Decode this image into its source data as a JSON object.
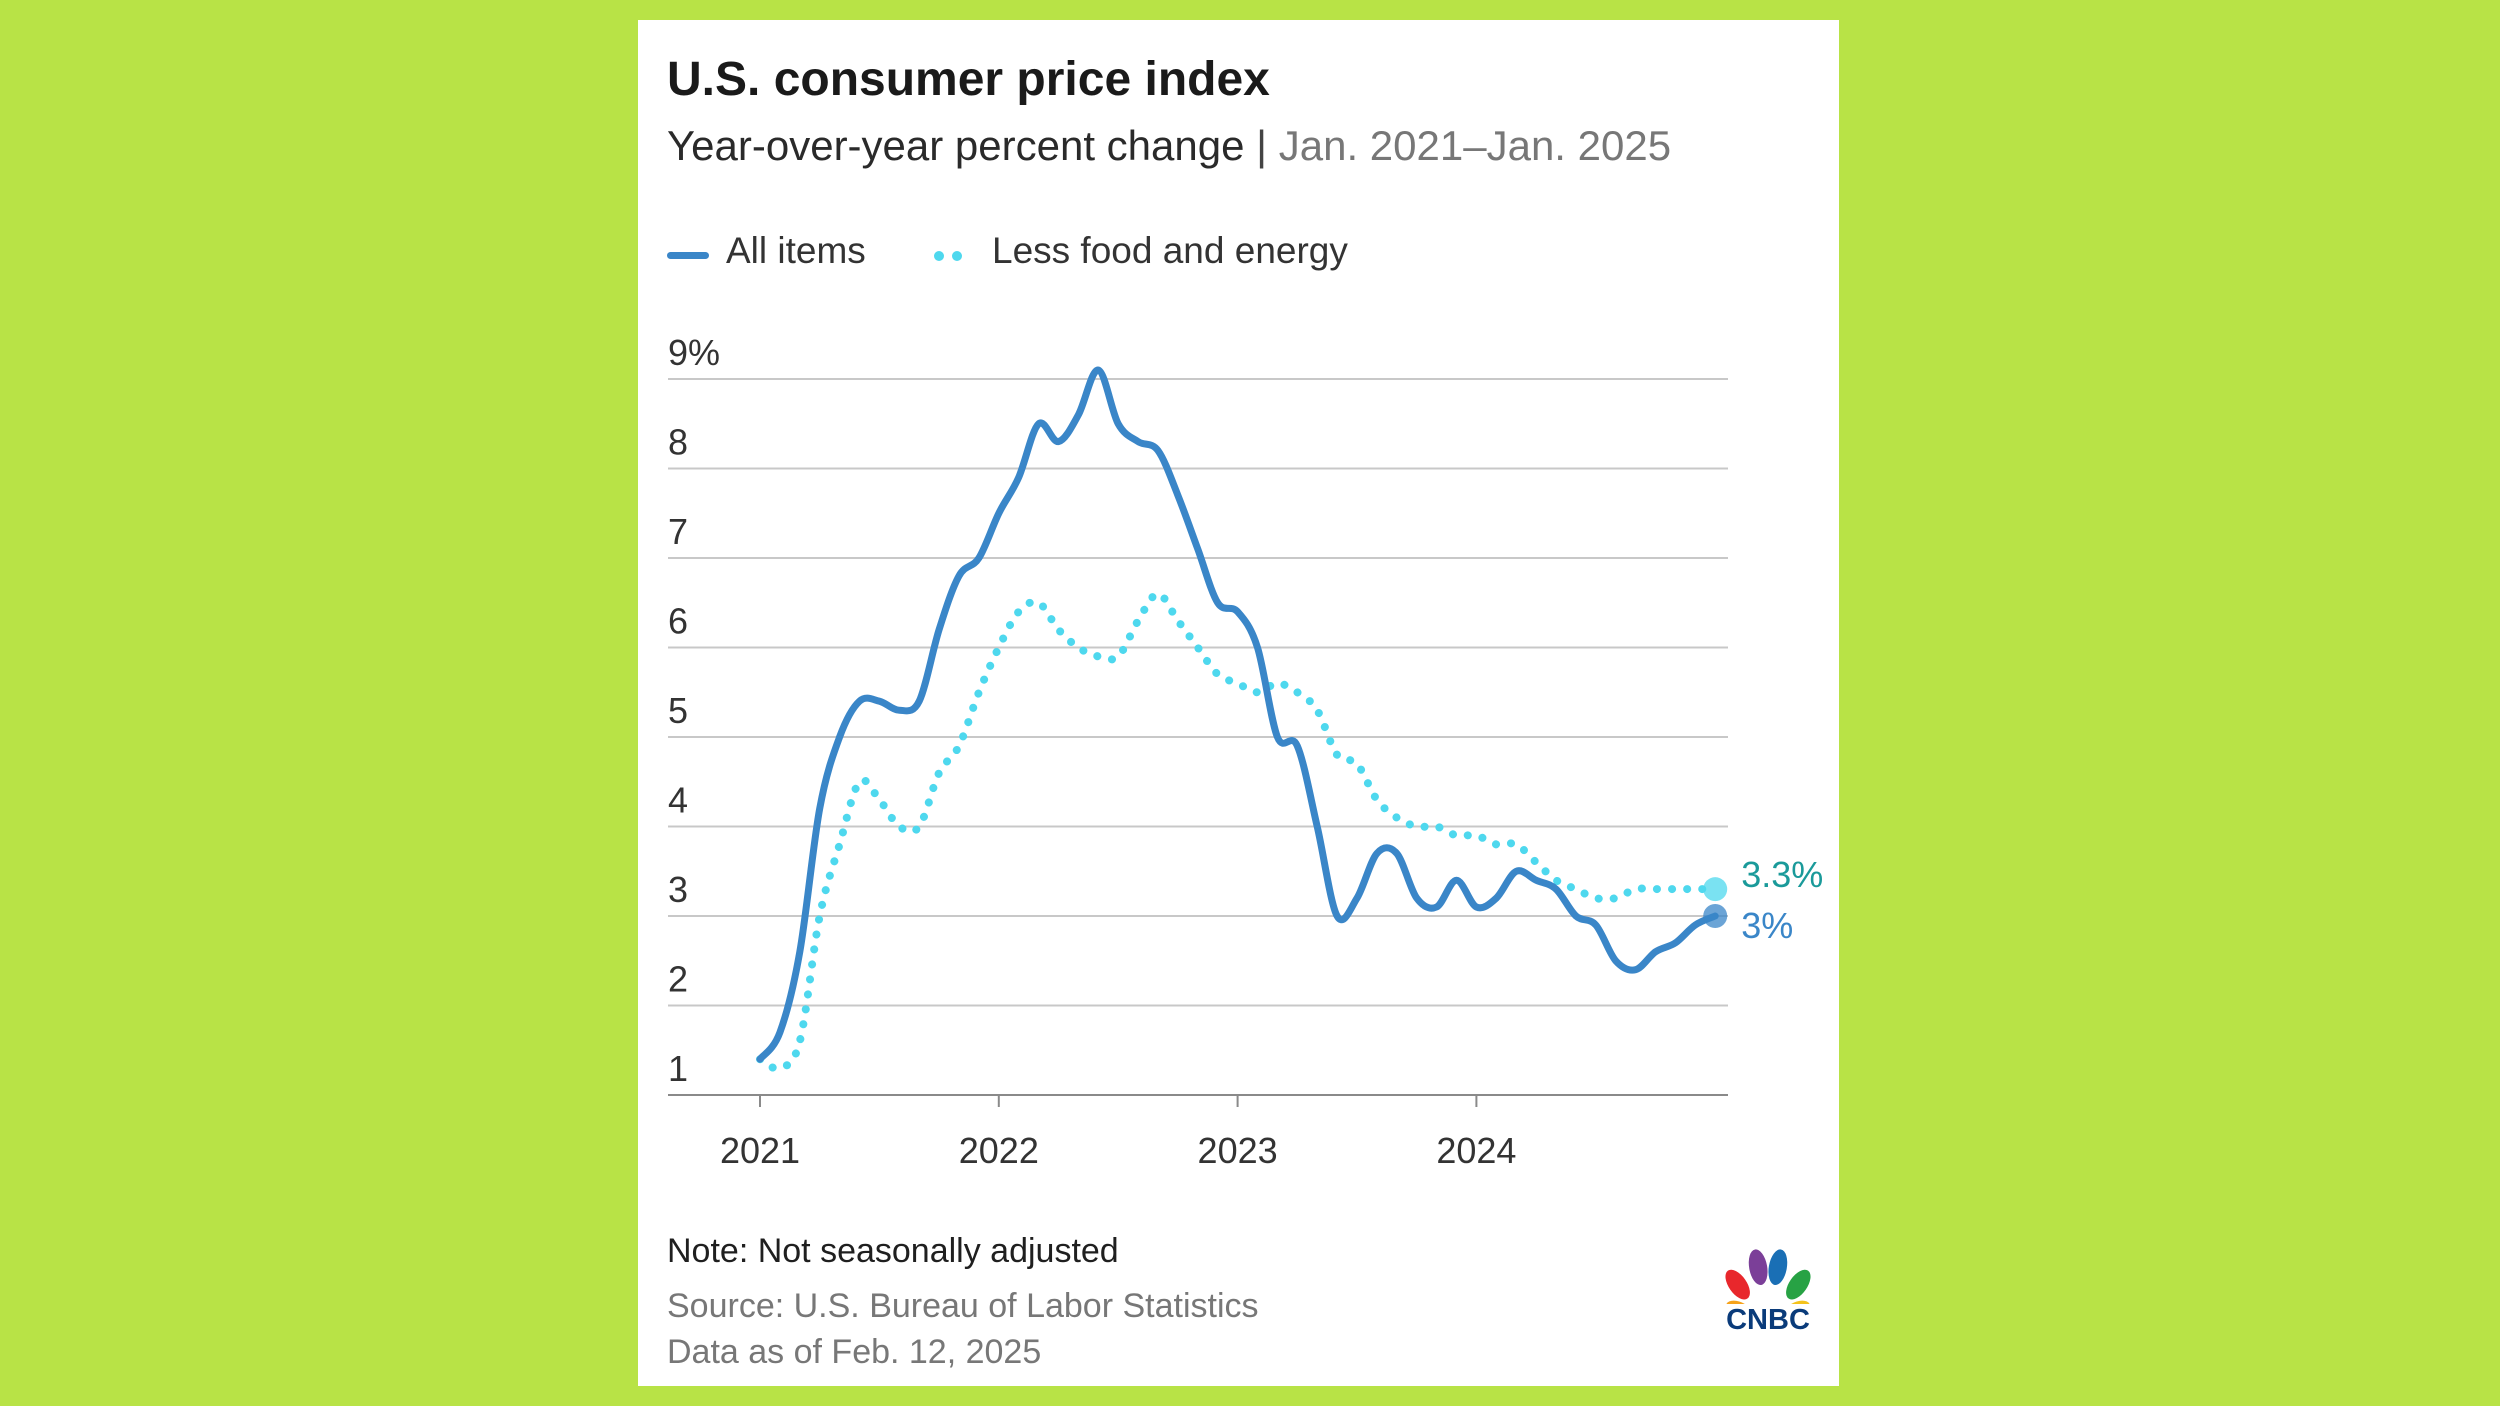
{
  "header": {
    "title": "U.S. consumer price index",
    "subtitle": "Year-over-year percent change",
    "separator": "|",
    "date_range": "Jan. 2021–Jan. 2025"
  },
  "legend": {
    "all_items": "All items",
    "core": "Less food and energy"
  },
  "footer": {
    "note": "Note: Not seasonally adjusted",
    "source": "Source: U.S. Bureau of Labor Statistics",
    "as_of": "Data as of Feb. 12, 2025"
  },
  "logo": {
    "text": "CNBC"
  },
  "colors": {
    "all_items": "#3a86c8",
    "core": "#4ed8ee",
    "core_label": "#1a9a9a",
    "gridline": "#c8c8c8",
    "axis_text": "#333333"
  },
  "chart_data": {
    "type": "line",
    "title": "U.S. consumer price index",
    "subtitle": "Year-over-year percent change | Jan. 2021–Jan. 2025",
    "xlabel": "",
    "ylabel": "",
    "x_start": "2021-01",
    "ylim": [
      1,
      9
    ],
    "yticks": [
      1,
      2,
      3,
      4,
      5,
      6,
      7,
      8,
      9
    ],
    "ytick_labels": [
      "1",
      "2",
      "3",
      "4",
      "5",
      "6",
      "7",
      "8",
      "9%"
    ],
    "xticks": [
      0,
      12,
      24,
      36
    ],
    "xtick_labels": [
      "2021",
      "2022",
      "2023",
      "2024"
    ],
    "grid": true,
    "legend_position": "top-left",
    "series": [
      {
        "name": "All items",
        "style": "solid",
        "end_label": "3%",
        "values": [
          1.4,
          1.7,
          2.6,
          4.2,
          5.0,
          5.4,
          5.4,
          5.3,
          5.4,
          6.2,
          6.8,
          7.0,
          7.5,
          7.9,
          8.5,
          8.3,
          8.6,
          9.1,
          8.5,
          8.3,
          8.2,
          7.7,
          7.1,
          6.5,
          6.4,
          6.0,
          5.0,
          4.9,
          4.0,
          3.0,
          3.2,
          3.7,
          3.7,
          3.2,
          3.1,
          3.4,
          3.1,
          3.2,
          3.5,
          3.4,
          3.3,
          3.0,
          2.9,
          2.5,
          2.4,
          2.6,
          2.7,
          2.9,
          3.0
        ]
      },
      {
        "name": "Less food and energy",
        "style": "dotted",
        "end_label": "3.3%",
        "values": [
          1.4,
          1.3,
          1.6,
          3.0,
          3.8,
          4.5,
          4.3,
          4.0,
          4.0,
          4.6,
          4.9,
          5.5,
          6.0,
          6.4,
          6.5,
          6.2,
          6.0,
          5.9,
          5.9,
          6.3,
          6.6,
          6.3,
          6.0,
          5.7,
          5.6,
          5.5,
          5.6,
          5.5,
          5.3,
          4.8,
          4.7,
          4.3,
          4.1,
          4.0,
          4.0,
          3.9,
          3.9,
          3.8,
          3.8,
          3.6,
          3.4,
          3.3,
          3.2,
          3.2,
          3.3,
          3.3,
          3.3,
          3.3,
          3.3
        ]
      }
    ]
  }
}
